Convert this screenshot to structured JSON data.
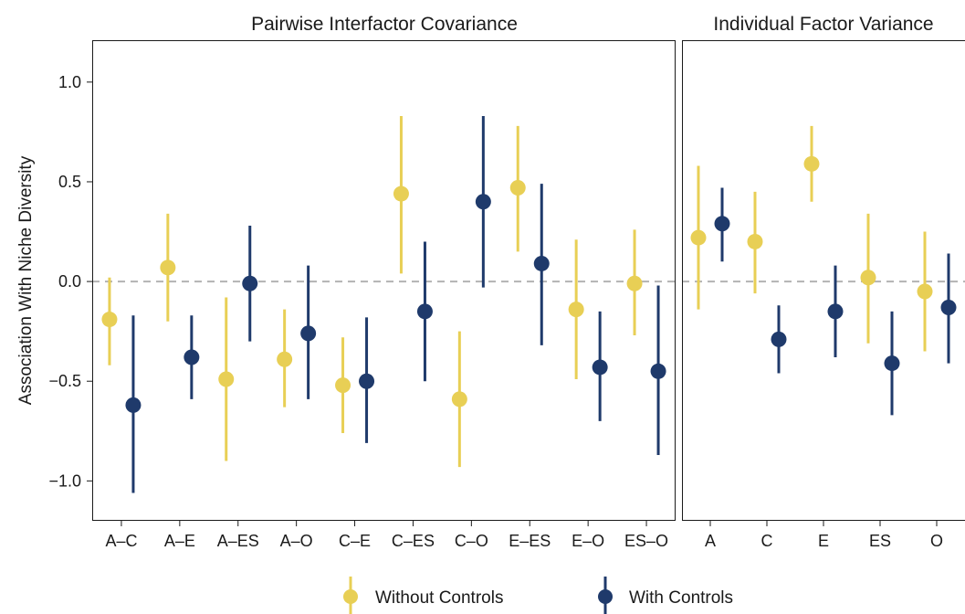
{
  "chart_data": {
    "type": "scatter",
    "y_axis": {
      "label": "Association With Niche Diversity",
      "ylim": [
        -1.2,
        1.21
      ],
      "ticks": [
        1.0,
        0.5,
        0.0,
        -0.5,
        -1.0
      ],
      "tick_labels": [
        "1.0",
        "0.5",
        "0.0",
        "−0.5",
        "−1.0"
      ],
      "reference_line": 0.0
    },
    "legend": {
      "position": "bottom",
      "items": [
        {
          "label": "Without Controls",
          "color": "#e8cf55"
        },
        {
          "label": "With Controls",
          "color": "#1f3a6b"
        }
      ]
    },
    "series_colors": {
      "without": "#e8cf55",
      "with": "#1f3a6b",
      "reference_line": "#b3b3b3"
    },
    "panels": [
      {
        "title": "Pairwise Interfactor Covariance",
        "categories": [
          "A–C",
          "A–E",
          "A–ES",
          "A–O",
          "C–E",
          "C–ES",
          "C–O",
          "E–ES",
          "E–O",
          "ES–O"
        ],
        "series": [
          {
            "name": "Without Controls",
            "estimate": [
              -0.19,
              0.07,
              -0.49,
              -0.39,
              -0.52,
              0.44,
              -0.59,
              0.47,
              -0.14,
              -0.01
            ],
            "lower": [
              -0.42,
              -0.2,
              -0.9,
              -0.63,
              -0.76,
              0.04,
              -0.93,
              0.15,
              -0.49,
              -0.27
            ],
            "upper": [
              0.02,
              0.34,
              -0.08,
              -0.14,
              -0.28,
              0.83,
              -0.25,
              0.78,
              0.21,
              0.26
            ]
          },
          {
            "name": "With Controls",
            "estimate": [
              -0.62,
              -0.38,
              -0.01,
              -0.26,
              -0.5,
              -0.15,
              0.4,
              0.09,
              -0.43,
              -0.45
            ],
            "lower": [
              -1.06,
              -0.59,
              -0.3,
              -0.59,
              -0.81,
              -0.5,
              -0.03,
              -0.32,
              -0.7,
              -0.87
            ],
            "upper": [
              -0.17,
              -0.17,
              0.28,
              0.08,
              -0.18,
              0.2,
              0.83,
              0.49,
              -0.15,
              -0.02
            ]
          }
        ]
      },
      {
        "title": "Individual Factor Variance",
        "categories": [
          "A",
          "C",
          "E",
          "ES",
          "O"
        ],
        "series": [
          {
            "name": "Without Controls",
            "estimate": [
              0.22,
              0.2,
              0.59,
              0.02,
              -0.05
            ],
            "lower": [
              -0.14,
              -0.06,
              0.4,
              -0.31,
              -0.35
            ],
            "upper": [
              0.58,
              0.45,
              0.78,
              0.34,
              0.25
            ]
          },
          {
            "name": "With Controls",
            "estimate": [
              0.29,
              -0.29,
              -0.15,
              -0.41,
              -0.13
            ],
            "lower": [
              0.1,
              -0.46,
              -0.38,
              -0.67,
              -0.41
            ],
            "upper": [
              0.47,
              -0.12,
              0.08,
              -0.15,
              0.14
            ]
          }
        ]
      }
    ]
  }
}
